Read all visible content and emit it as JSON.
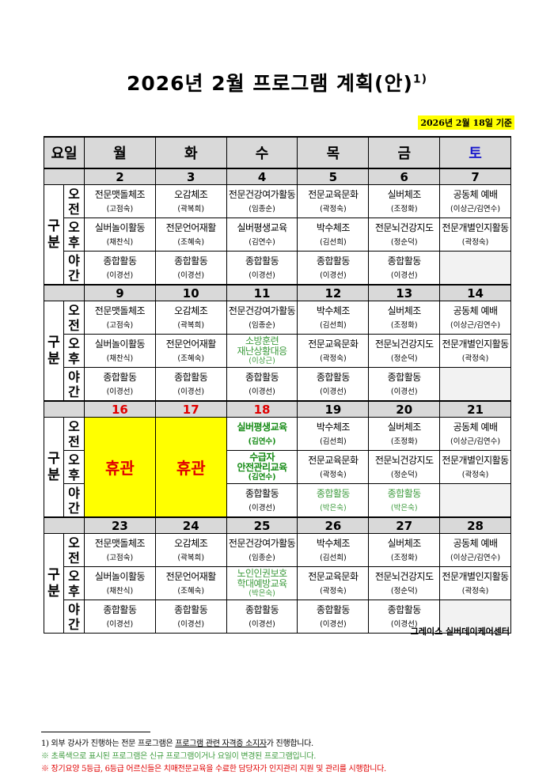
{
  "title": "2026년 2월 프로그램 계획(안)",
  "title_sup": "1)",
  "basis": "2026년 2월 18일 기준",
  "header": {
    "day_label": "요일",
    "days": [
      "월",
      "화",
      "수",
      "목",
      "금",
      "토"
    ]
  },
  "group_label": "구분",
  "slots": [
    "오전",
    "오후",
    "야간"
  ],
  "closed_label": "휴관",
  "colors": {
    "closed_bg": "#ffff00",
    "red": "#e00000",
    "green": "#3d9b3d",
    "saturday": "#1a1acc"
  },
  "weeks": [
    {
      "dates": [
        "2",
        "3",
        "4",
        "5",
        "6",
        "7"
      ],
      "closed": [],
      "red_dates": [],
      "cells": [
        [
          {
            "n": "전문맷돌체조",
            "p": "(고점숙)"
          },
          {
            "n": "오감체조",
            "p": "(곽복희)"
          },
          {
            "n": "전문건강여가활동",
            "p": "(임종순)"
          },
          {
            "n": "전문교육문화",
            "p": "(곽정숙)"
          },
          {
            "n": "실버체조",
            "p": "(조정화)"
          },
          {
            "n": "공동체 예배",
            "p": "(이상근/김연수)"
          }
        ],
        [
          {
            "n": "실버놀이활동",
            "p": "(채찬식)"
          },
          {
            "n": "전문언어재활",
            "p": "(조혜숙)"
          },
          {
            "n": "실버평생교육",
            "p": "(김연수)"
          },
          {
            "n": "박수체조",
            "p": "(김선희)"
          },
          {
            "n": "전문뇌건강지도",
            "p": "(정순덕)"
          },
          {
            "n": "전문개별인지활동",
            "p": "(곽정숙)"
          }
        ],
        [
          {
            "n": "종합활동",
            "p": "(이경선)"
          },
          {
            "n": "종합활동",
            "p": "(이경선)"
          },
          {
            "n": "종합활동",
            "p": "(이경선)"
          },
          {
            "n": "종합활동",
            "p": "(이경선)"
          },
          {
            "n": "종합활동",
            "p": "(이경선)"
          },
          null
        ]
      ]
    },
    {
      "dates": [
        "9",
        "10",
        "11",
        "12",
        "13",
        "14"
      ],
      "closed": [],
      "red_dates": [],
      "cells": [
        [
          {
            "n": "전문맷돌체조",
            "p": "(고점숙)"
          },
          {
            "n": "오감체조",
            "p": "(곽복희)"
          },
          {
            "n": "전문건강여가활동",
            "p": "(임종순)"
          },
          {
            "n": "박수체조",
            "p": "(김선희)"
          },
          {
            "n": "실버체조",
            "p": "(조정화)"
          },
          {
            "n": "공동체 예배",
            "p": "(이상근/김연수)"
          }
        ],
        [
          {
            "n": "실버놀이활동",
            "p": "(채찬식)"
          },
          {
            "n": "전문언어재활",
            "p": "(조혜숙)"
          },
          {
            "n": "소방훈련\n재난상황대응",
            "p": "(이상근)",
            "c": "green"
          },
          {
            "n": "전문교육문화",
            "p": "(곽정숙)"
          },
          {
            "n": "전문뇌건강지도",
            "p": "(정순덕)"
          },
          {
            "n": "전문개별인지활동",
            "p": "(곽정숙)"
          }
        ],
        [
          {
            "n": "종합활동",
            "p": "(이경선)"
          },
          {
            "n": "종합활동",
            "p": "(이경선)"
          },
          {
            "n": "종합활동",
            "p": "(이경선)"
          },
          {
            "n": "종합활동",
            "p": "(이경선)"
          },
          {
            "n": "종합활동",
            "p": "(이경선)"
          },
          null
        ]
      ]
    },
    {
      "dates": [
        "16",
        "17",
        "18",
        "19",
        "20",
        "21"
      ],
      "closed": [
        0,
        1
      ],
      "red_dates": [
        0,
        1,
        2
      ],
      "cells": [
        [
          null,
          null,
          {
            "n": "실버평생교육",
            "p": "(김연수)",
            "c": "dgreen"
          },
          {
            "n": "박수체조",
            "p": "(김선희)"
          },
          {
            "n": "실버체조",
            "p": "(조정화)"
          },
          {
            "n": "공동체 예배",
            "p": "(이상근/김연수)"
          }
        ],
        [
          null,
          null,
          {
            "n": "수급자\n안전관리교육",
            "p": "(김연수)",
            "c": "dgreen"
          },
          {
            "n": "전문교육문화",
            "p": "(곽정숙)"
          },
          {
            "n": "전문뇌건강지도",
            "p": "(정순덕)"
          },
          {
            "n": "전문개별인지활동",
            "p": "(곽정숙)"
          }
        ],
        [
          null,
          null,
          {
            "n": "종합활동",
            "p": "(이경선)"
          },
          {
            "n": "종합활동",
            "p": "(박은숙)",
            "c": "green"
          },
          {
            "n": "종합활동",
            "p": "(박은숙)",
            "c": "green"
          },
          null
        ]
      ]
    },
    {
      "dates": [
        "23",
        "24",
        "25",
        "26",
        "27",
        "28"
      ],
      "closed": [],
      "red_dates": [],
      "cells": [
        [
          {
            "n": "전문맷돌체조",
            "p": "(고점숙)"
          },
          {
            "n": "오감체조",
            "p": "(곽복희)"
          },
          {
            "n": "전문건강여가활동",
            "p": "(임종순)"
          },
          {
            "n": "박수체조",
            "p": "(김선희)"
          },
          {
            "n": "실버체조",
            "p": "(조정화)"
          },
          {
            "n": "공동체 예배",
            "p": "(이상근/김연수)"
          }
        ],
        [
          {
            "n": "실버놀이활동",
            "p": "(채찬식)"
          },
          {
            "n": "전문언어재활",
            "p": "(조혜숙)"
          },
          {
            "n": "노인인권보호\n학대예방교육",
            "p": "(박은숙)",
            "c": "green"
          },
          {
            "n": "전문교육문화",
            "p": "(곽정숙)"
          },
          {
            "n": "전문뇌건강지도",
            "p": "(정순덕)"
          },
          {
            "n": "전문개별인지활동",
            "p": "(곽정숙)"
          }
        ],
        [
          {
            "n": "종합활동",
            "p": "(이경선)"
          },
          {
            "n": "종합활동",
            "p": "(이경선)"
          },
          {
            "n": "종합활동",
            "p": "(이경선)"
          },
          {
            "n": "종합활동",
            "p": "(이경선)"
          },
          {
            "n": "종합활동",
            "p": "(이경선)"
          },
          null
        ]
      ]
    }
  ],
  "center_name": "그레이스 실버데이케어센터",
  "footnotes": {
    "f1_pre": "1) 외부 강사가 진행하는 전문 프로그램은 ",
    "f1_u": "프로그램 관련 자격증 소지자",
    "f1_post": "가 진행합니다.",
    "f2": "※ 초록색으로 표시된 프로그램은 신규 프로그램이거나 요일이 변경된 프로그램입니다.",
    "f3": "※ 장기요양 5등급, 6등급 어르신들은 치매전문교육을 수료한 담당자가 인지관리 지원 및 관리를 시행합니다."
  }
}
